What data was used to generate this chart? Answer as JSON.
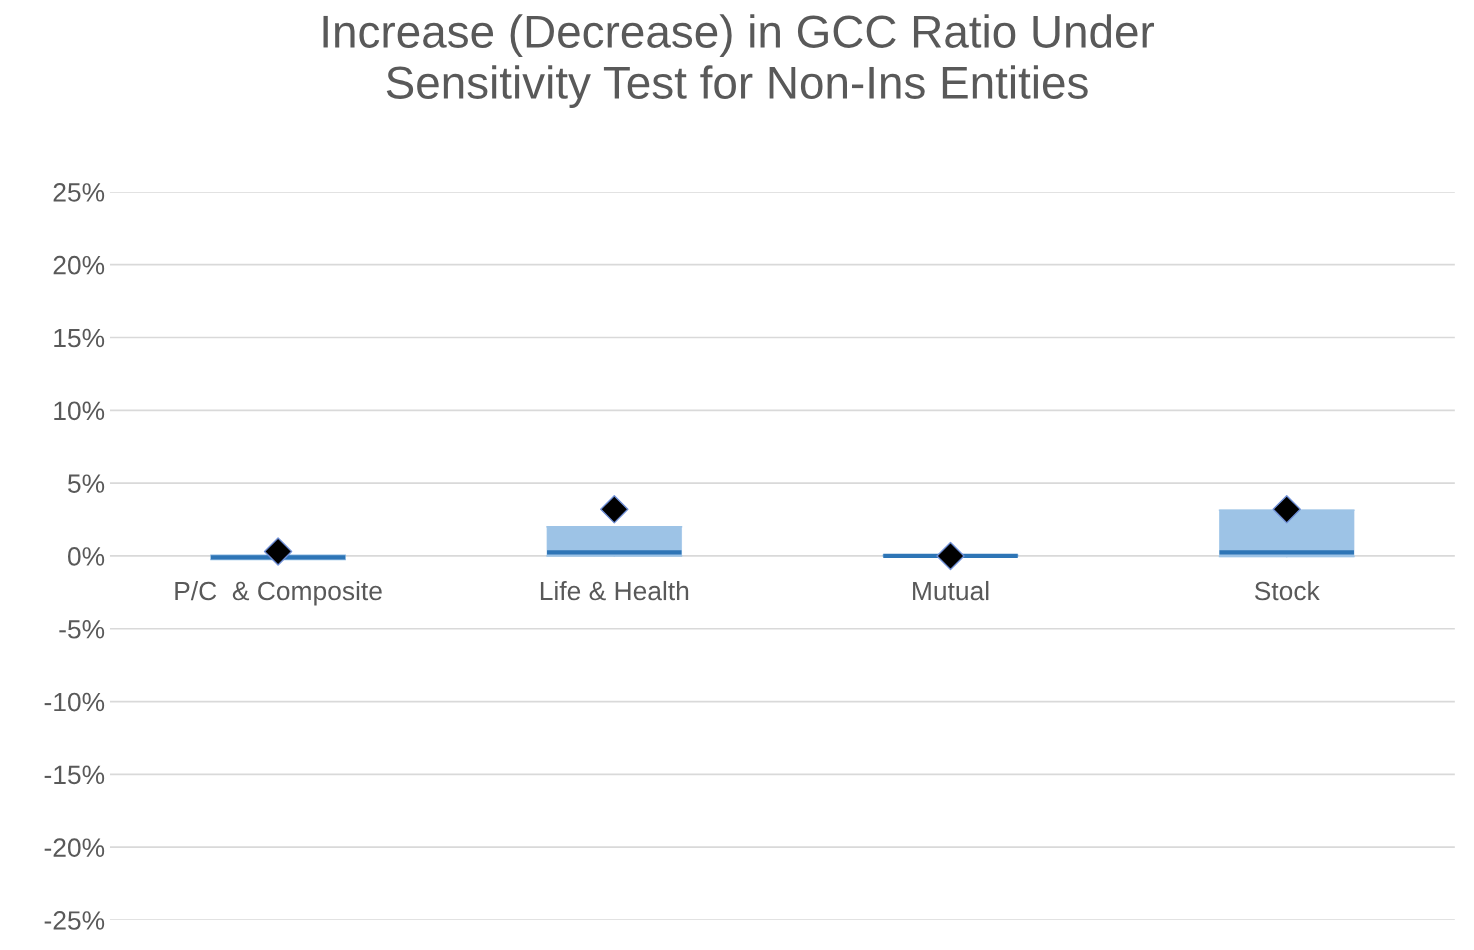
{
  "chart_data": {
    "type": "box",
    "title": "Increase (Decrease) in GCC Ratio Under\nSensitivity Test for Non-Ins Entities",
    "categories": [
      "P/C  & Composite",
      "Life & Health",
      "Mutual",
      "Stock"
    ],
    "series": [
      {
        "type": "box",
        "color": "#9dc3e6",
        "boxes": [
          {
            "low": -0.25,
            "q1": -0.25,
            "median": -0.1,
            "q3": 0.05,
            "high": 0.05
          },
          {
            "low": 0,
            "q1": 0,
            "median": 0.25,
            "q3": 2.0,
            "high": 2.0
          },
          {
            "low": 0,
            "q1": 0,
            "median": 0,
            "q3": 0.05,
            "high": 0.05
          },
          {
            "low": -0.05,
            "q1": -0.05,
            "median": 0.25,
            "q3": 3.15,
            "high": 3.15
          }
        ]
      },
      {
        "type": "scatter",
        "color": "#000000",
        "x": [
          "P/C  & Composite",
          "Life & Health",
          "Mutual",
          "Stock"
        ],
        "values": [
          0.3,
          3.2,
          0,
          3.2
        ]
      }
    ],
    "marker": "diamond",
    "ylim": [
      -25,
      25
    ],
    "yticks": [
      {
        "value": -25,
        "label": "-25%"
      },
      {
        "value": -20,
        "label": "-20%"
      },
      {
        "value": -15,
        "label": "-15%"
      },
      {
        "value": -10,
        "label": "-10%"
      },
      {
        "value": -5,
        "label": "-5%"
      },
      {
        "value": 0,
        "label": "0%"
      },
      {
        "value": 5,
        "label": "5%"
      },
      {
        "value": 10,
        "label": "10%"
      },
      {
        "value": 15,
        "label": "15%"
      },
      {
        "value": 20,
        "label": "20%"
      },
      {
        "value": 25,
        "label": "25%"
      }
    ],
    "grid": "y",
    "legend": false
  }
}
